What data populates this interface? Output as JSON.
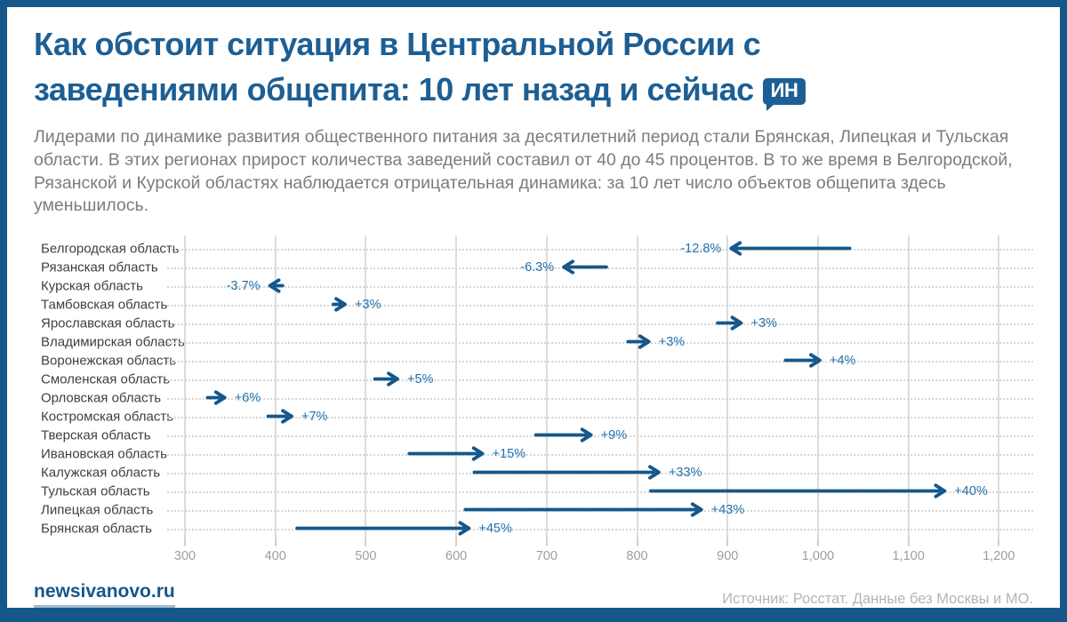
{
  "header": {
    "title_line1": "Как обстоит ситуация в Центральной России с",
    "title_line2": "заведениями общепита: 10 лет назад и сейчас",
    "badge": "ИН"
  },
  "intro": "Лидерами по динамике развития общественного питания за десятилетний период стали Брянская, Липецкая и Тульская области. В этих регионах прирост количества заведений составил от 40 до 45 процентов. В то же время в Белгородской, Рязанской и Курской областях наблюдается отрицательная динамика: за 10 лет число объектов общепита здесь уменьшилось.",
  "chart_data": {
    "type": "bar",
    "variant": "horizontal-arrow-dumbbell",
    "title": "",
    "xlabel": "",
    "ylabel": "",
    "xlim": [
      300,
      1238
    ],
    "grid": "vertical solid lines, horizontal dotted row lines",
    "legend": "none",
    "categories": [
      "Белгородская область",
      "Рязанская область",
      "Курская область",
      "Тамбовская область",
      "Ярославская область",
      "Владимирская область",
      "Воронежская область",
      "Смоленская область",
      "Орловская область",
      "Костромская область",
      "Тверская область",
      "Ивановская область",
      "Калужская область",
      "Тульская область",
      "Липецкая область",
      "Брянская область"
    ],
    "series": [
      {
        "name": "10 лет назад",
        "values": [
          1035,
          766,
          408,
          464,
          889,
          790,
          964,
          510,
          325,
          392,
          688,
          548,
          620,
          815,
          610,
          424
        ]
      },
      {
        "name": "сейчас",
        "values": [
          903,
          718,
          393,
          478,
          916,
          814,
          1003,
          536,
          345,
          419,
          750,
          630,
          825,
          1141,
          872,
          615
        ]
      }
    ],
    "change_labels": [
      "-12.8%",
      "-6.3%",
      "-3.7%",
      "+3%",
      "+3%",
      "+3%",
      "+4%",
      "+5%",
      "+6%",
      "+7%",
      "+9%",
      "+15%",
      "+33%",
      "+40%",
      "+43%",
      "+45%"
    ],
    "x_tick_values": [
      300,
      400,
      500,
      600,
      700,
      800,
      900,
      1000,
      1100,
      1200
    ],
    "x_tick_labels": [
      "300",
      "400",
      "500",
      "600",
      "700",
      "800",
      "900",
      "1,000",
      "1,100",
      "1,200"
    ]
  },
  "footer": {
    "site": "newsivanovo.ru",
    "source": "Источник: Росстат. Данные без Москвы и МО."
  },
  "colors": {
    "border": "#15578b",
    "title": "#1d5f94",
    "intro_text": "#7c7c7c",
    "arrow": "#15578b",
    "percent_label": "#2272ab",
    "row_label": "#3f3f3f",
    "grid": "#dcdcdc",
    "tick_label": "#9e9e9e",
    "source_text": "#b5b5b5"
  }
}
